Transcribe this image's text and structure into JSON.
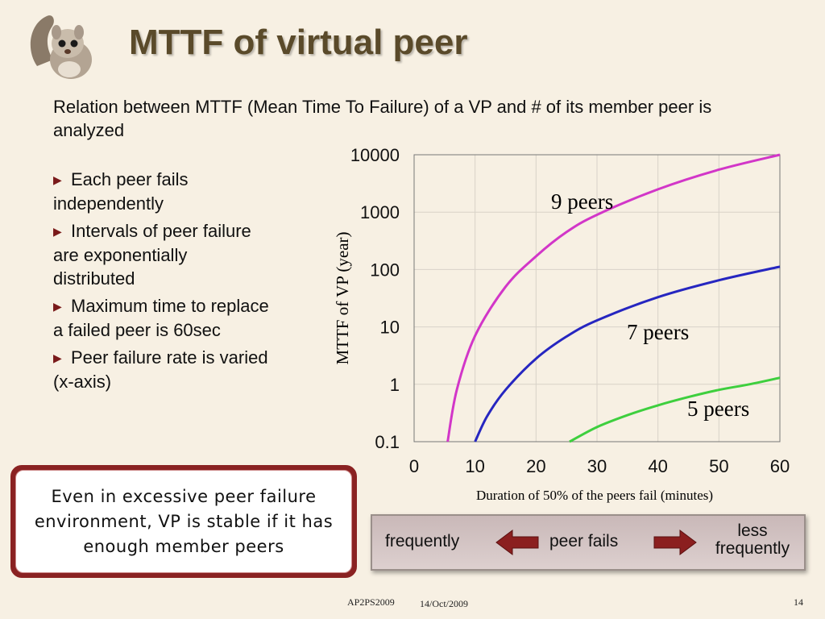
{
  "slide": {
    "title": "MTTF of virtual peer",
    "subtitle": "Relation between MTTF (Mean Time To Failure) of a VP and # of its member peer is analyzed",
    "bullets": [
      "Each peer fails independently",
      "Intervals of peer failure are exponentially distributed",
      "Maximum time to replace a failed peer is 60sec",
      "Peer failure rate is varied (x-axis)"
    ],
    "callout": "Even in excessive peer failure environment, VP is stable if it has enough member peers",
    "legend": {
      "left": "frequently",
      "middle": "peer fails",
      "right_line1": "less",
      "right_line2": "frequently"
    },
    "footer": {
      "conference": "AP2PS2009",
      "date": "14/Oct/2009",
      "page": "14"
    },
    "colors": {
      "background": "#f7f0e3",
      "title": "#5a4a2a",
      "accent": "#8a2222"
    },
    "icons": {
      "logo": "squirrel-icon",
      "bullet": "triangle-right-icon",
      "arrow_left": "arrow-left-icon",
      "arrow_right": "arrow-right-icon"
    }
  },
  "chart_data": {
    "type": "line",
    "xlabel": "Duration of 50% of the peers fail (minutes)",
    "ylabel": "MTTF of VP (year)",
    "x_ticks": [
      "0",
      "10",
      "20",
      "30",
      "40",
      "50",
      "60"
    ],
    "y_ticks": [
      "0.1",
      "1",
      "10",
      "100",
      "1000",
      "10000"
    ],
    "xlim": [
      0,
      60
    ],
    "ylim": [
      0.1,
      10000
    ],
    "y_scale": "log",
    "grid": true,
    "series": [
      {
        "name": "9 peers",
        "color": "#d236c8",
        "x": [
          5.5,
          7,
          10,
          15,
          20,
          25,
          30,
          40,
          50,
          60
        ],
        "y": [
          0.1,
          0.8,
          7,
          50,
          170,
          450,
          900,
          2500,
          5500,
          10000
        ]
      },
      {
        "name": "7 peers",
        "color": "#2626c0",
        "x": [
          10,
          12,
          15,
          20,
          25,
          30,
          40,
          50,
          60
        ],
        "y": [
          0.1,
          0.28,
          0.8,
          2.8,
          6.8,
          13,
          33,
          65,
          112
        ]
      },
      {
        "name": "5 peers",
        "color": "#3ecf3e",
        "x": [
          25.5,
          30,
          35,
          40,
          45,
          50,
          55,
          60
        ],
        "y": [
          0.1,
          0.18,
          0.29,
          0.43,
          0.6,
          0.8,
          1.0,
          1.3
        ]
      }
    ]
  }
}
